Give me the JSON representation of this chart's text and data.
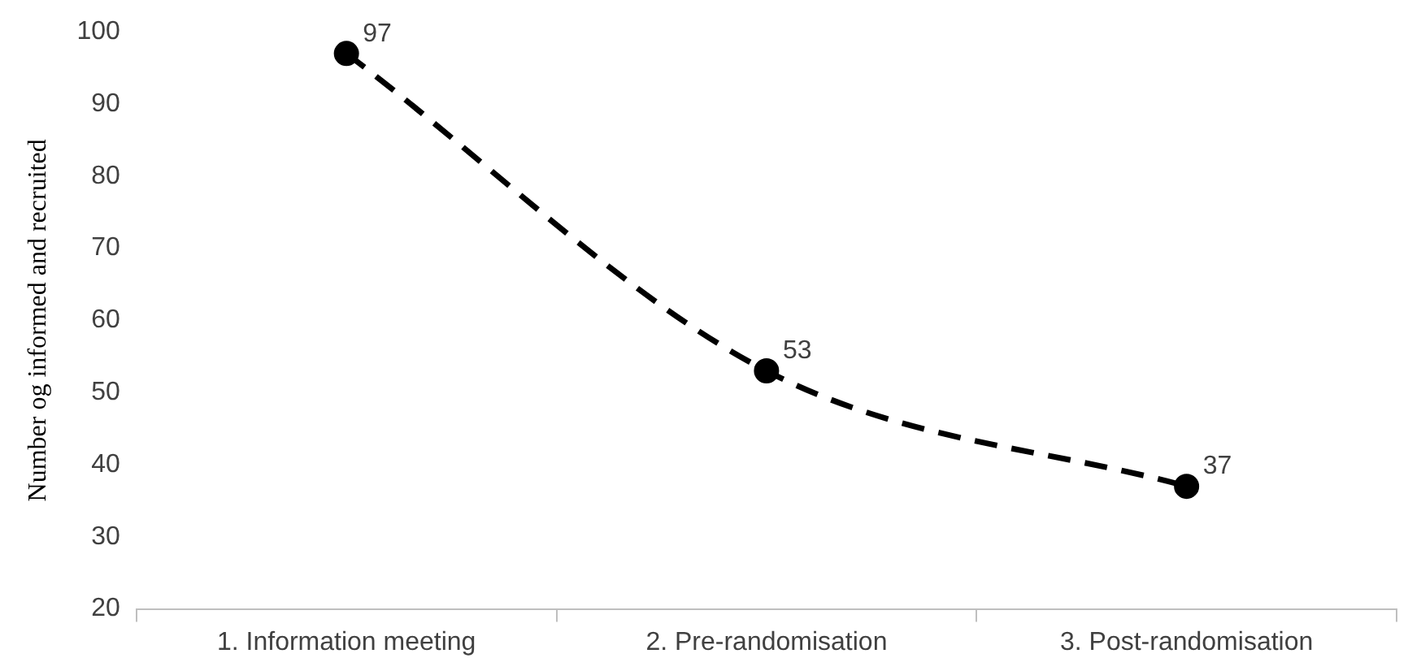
{
  "chart_data": {
    "type": "line",
    "ylabel": "Number og informed and recruited",
    "categories": [
      "1. Information meeting",
      "2. Pre-randomisation",
      "3. Post-randomisation"
    ],
    "series": [
      {
        "color": "#000000",
        "values": [
          97,
          53,
          37
        ]
      }
    ],
    "ylim": [
      20,
      100
    ],
    "yticks": [
      20,
      30,
      40,
      50,
      60,
      70,
      80,
      90,
      100
    ],
    "grid": false,
    "legend": false,
    "marker": "circle",
    "line_style": "dashed",
    "data_labels": true
  }
}
